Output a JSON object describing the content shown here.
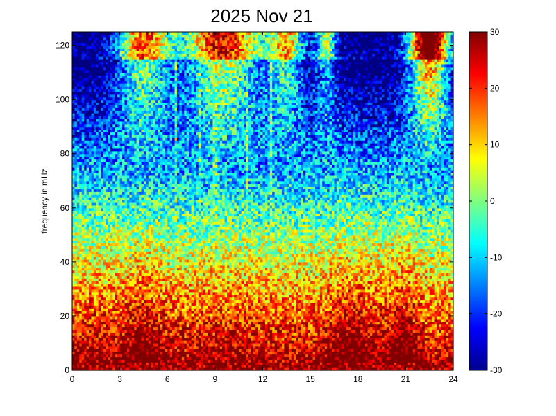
{
  "chart_data": {
    "type": "heatmap",
    "title": "2025 Nov 21",
    "xlabel": "",
    "ylabel": "frequency in mHz",
    "xlim": [
      0,
      24
    ],
    "ylim": [
      0,
      125
    ],
    "x_ticks": [
      "0",
      "3",
      "6",
      "9",
      "12",
      "15",
      "18",
      "21",
      "24"
    ],
    "y_ticks": [
      "0",
      "20",
      "40",
      "60",
      "80",
      "100",
      "120"
    ],
    "grid": false,
    "colormap": "jet",
    "colorbar": {
      "range": [
        -30,
        30
      ],
      "ticks": [
        "30",
        "20",
        "10",
        "0",
        "-10",
        "-20",
        "-30"
      ]
    },
    "description_of_values": "power spectral density, high (red, ~30) at low frequencies below ~15 mHz throughout the day, decreasing to low (blue, ~-30) at higher frequencies except saturated red blocks at 120-125 mHz and during hours ~2-4, 9-11, 21-23 upper band",
    "intensity_peaks_hours": [
      4.5,
      17.5,
      20.8
    ],
    "vertical_streak_hours": [
      6.5,
      8.0,
      9.0,
      11.0,
      12.5
    ]
  },
  "colors": {
    "background": "#ffffff",
    "axis": "#000000"
  }
}
